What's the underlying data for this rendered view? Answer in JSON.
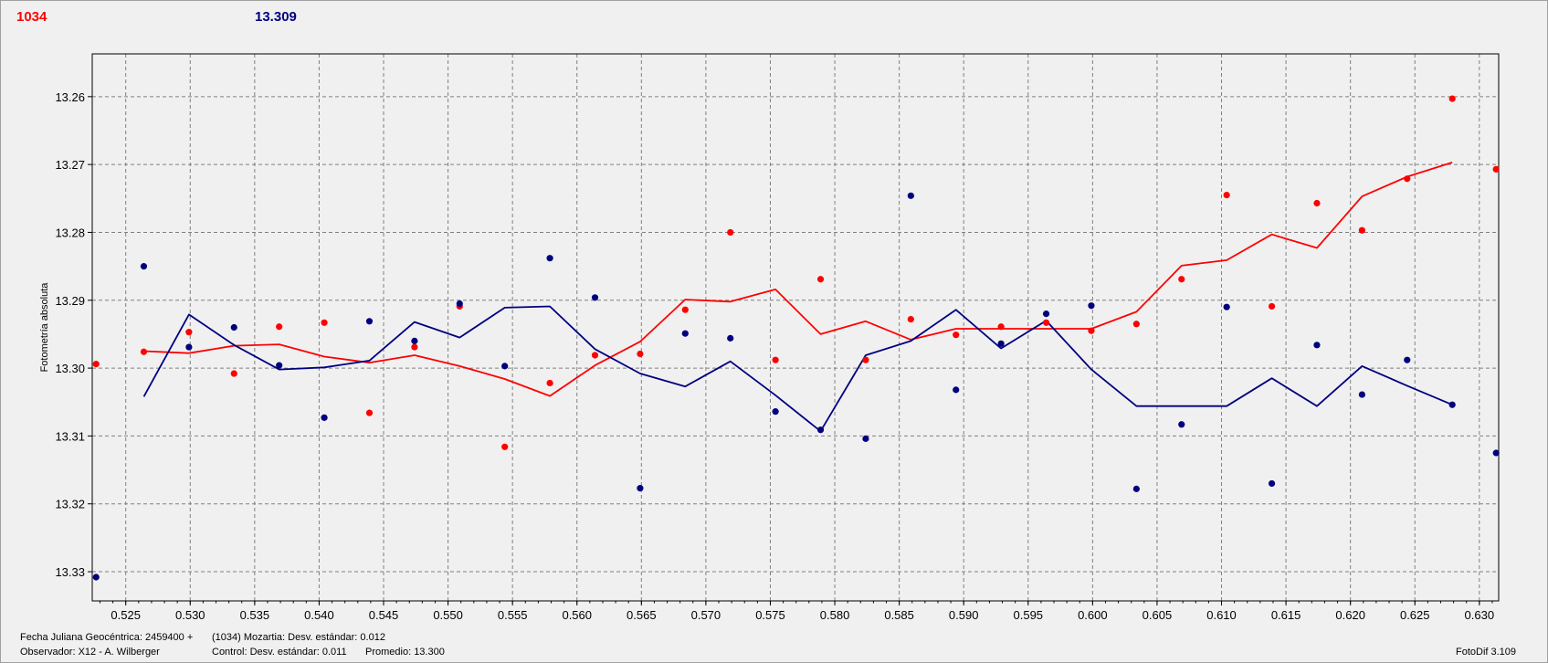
{
  "header": {
    "variable_name": "1034",
    "comparison_value": "13.309"
  },
  "colors": {
    "variable": "#ff0000",
    "comparison": "#00007f",
    "grid": "#808080",
    "plot_bg": "#f0f0f0"
  },
  "footer": {
    "jd_label": "Fecha Juliana Geocéntrica: 2459400 +",
    "observer": "Observador: X12 - A. Wilberger",
    "variable_stats": "(1034) Mozartia: Desv. estándar: 0.012",
    "control_stats": "Control: Desv. estándar: 0.011",
    "average": "Promedio: 13.300",
    "software": "FotoDif 3.109"
  },
  "chart_data": {
    "type": "scatter",
    "ylabel": "Fotometría absoluta",
    "xlabel": "",
    "xlim": [
      0.5224,
      0.6315
    ],
    "ylim": [
      13.2537,
      13.3343
    ],
    "y_inverted": true,
    "grid": true,
    "x_ticks": [
      "0.525",
      "0.530",
      "0.535",
      "0.540",
      "0.545",
      "0.550",
      "0.555",
      "0.560",
      "0.565",
      "0.570",
      "0.575",
      "0.580",
      "0.585",
      "0.590",
      "0.595",
      "0.600",
      "0.605",
      "0.610",
      "0.615",
      "0.620",
      "0.625",
      "0.630"
    ],
    "y_ticks": [
      "13.26",
      "13.27",
      "13.28",
      "13.29",
      "13.30",
      "13.31",
      "13.32",
      "13.33"
    ],
    "series": [
      {
        "name": "1034",
        "color": "#ff0000",
        "points": [
          [
            0.5227,
            13.2994
          ],
          [
            0.5264,
            13.2976
          ],
          [
            0.5299,
            13.2947
          ],
          [
            0.5334,
            13.3008
          ],
          [
            0.5369,
            13.2939
          ],
          [
            0.5404,
            13.2933
          ],
          [
            0.5439,
            13.3066
          ],
          [
            0.5474,
            13.2969
          ],
          [
            0.5509,
            13.2909
          ],
          [
            0.5544,
            13.3116
          ],
          [
            0.5579,
            13.3022
          ],
          [
            0.5614,
            13.2981
          ],
          [
            0.5649,
            13.2979
          ],
          [
            0.5684,
            13.2914
          ],
          [
            0.5719,
            13.28
          ],
          [
            0.5754,
            13.2988
          ],
          [
            0.5789,
            13.2869
          ],
          [
            0.5824,
            13.2988
          ],
          [
            0.5859,
            13.2928
          ],
          [
            0.5894,
            13.2951
          ],
          [
            0.5929,
            13.2939
          ],
          [
            0.5964,
            13.2933
          ],
          [
            0.5999,
            13.2945
          ],
          [
            0.6034,
            13.2935
          ],
          [
            0.6069,
            13.2869
          ],
          [
            0.6104,
            13.2745
          ],
          [
            0.6139,
            13.2909
          ],
          [
            0.6174,
            13.2757
          ],
          [
            0.6209,
            13.2797
          ],
          [
            0.6244,
            13.2721
          ],
          [
            0.6279,
            13.2603
          ],
          [
            0.6313,
            13.2707
          ]
        ],
        "line": [
          [
            0.5264,
            13.2975
          ],
          [
            0.5299,
            13.2978
          ],
          [
            0.5334,
            13.2967
          ],
          [
            0.5369,
            13.2965
          ],
          [
            0.5404,
            13.2983
          ],
          [
            0.5439,
            13.2992
          ],
          [
            0.5474,
            13.2981
          ],
          [
            0.5509,
            13.2997
          ],
          [
            0.5544,
            13.3016
          ],
          [
            0.5579,
            13.3041
          ],
          [
            0.5614,
            13.2996
          ],
          [
            0.5649,
            13.2961
          ],
          [
            0.5684,
            13.2899
          ],
          [
            0.5719,
            13.2902
          ],
          [
            0.5754,
            13.2884
          ],
          [
            0.5789,
            13.295
          ],
          [
            0.5824,
            13.2931
          ],
          [
            0.5859,
            13.2958
          ],
          [
            0.5894,
            13.2942
          ],
          [
            0.5929,
            13.2942
          ],
          [
            0.5964,
            13.2942
          ],
          [
            0.5999,
            13.2942
          ],
          [
            0.6034,
            13.2917
          ],
          [
            0.6069,
            13.2849
          ],
          [
            0.6104,
            13.2841
          ],
          [
            0.6139,
            13.2803
          ],
          [
            0.6174,
            13.2823
          ],
          [
            0.6209,
            13.2747
          ],
          [
            0.6244,
            13.2718
          ],
          [
            0.6279,
            13.2697
          ]
        ]
      },
      {
        "name": "13.309",
        "color": "#00007f",
        "points": [
          [
            0.5227,
            13.3308
          ],
          [
            0.5264,
            13.285
          ],
          [
            0.5299,
            13.2969
          ],
          [
            0.5334,
            13.294
          ],
          [
            0.5369,
            13.2996
          ],
          [
            0.5404,
            13.3073
          ],
          [
            0.5439,
            13.2931
          ],
          [
            0.5474,
            13.296
          ],
          [
            0.5509,
            13.2905
          ],
          [
            0.5544,
            13.2997
          ],
          [
            0.5579,
            13.2838
          ],
          [
            0.5614,
            13.2896
          ],
          [
            0.5649,
            13.3177
          ],
          [
            0.5684,
            13.2949
          ],
          [
            0.5719,
            13.2956
          ],
          [
            0.5754,
            13.3064
          ],
          [
            0.5789,
            13.3091
          ],
          [
            0.5824,
            13.3104
          ],
          [
            0.5859,
            13.2746
          ],
          [
            0.5894,
            13.3032
          ],
          [
            0.5929,
            13.2964
          ],
          [
            0.5964,
            13.292
          ],
          [
            0.5999,
            13.2908
          ],
          [
            0.6034,
            13.3178
          ],
          [
            0.6069,
            13.3083
          ],
          [
            0.6104,
            13.291
          ],
          [
            0.6139,
            13.317
          ],
          [
            0.6174,
            13.2966
          ],
          [
            0.6209,
            13.3039
          ],
          [
            0.6244,
            13.2988
          ],
          [
            0.6279,
            13.3054
          ],
          [
            0.6313,
            13.3125
          ]
        ],
        "line": [
          [
            0.5264,
            13.3042
          ],
          [
            0.5299,
            13.2921
          ],
          [
            0.5334,
            13.2966
          ],
          [
            0.5369,
            13.3002
          ],
          [
            0.5404,
            13.2999
          ],
          [
            0.5439,
            13.2989
          ],
          [
            0.5474,
            13.2932
          ],
          [
            0.5509,
            13.2955
          ],
          [
            0.5544,
            13.2911
          ],
          [
            0.5579,
            13.2909
          ],
          [
            0.5614,
            13.2972
          ],
          [
            0.5649,
            13.3008
          ],
          [
            0.5684,
            13.3027
          ],
          [
            0.5719,
            13.299
          ],
          [
            0.5754,
            13.304
          ],
          [
            0.5789,
            13.3093
          ],
          [
            0.5824,
            13.2981
          ],
          [
            0.5859,
            13.296
          ],
          [
            0.5894,
            13.2914
          ],
          [
            0.5929,
            13.2971
          ],
          [
            0.5964,
            13.293
          ],
          [
            0.5999,
            13.3002
          ],
          [
            0.6034,
            13.3056
          ],
          [
            0.6069,
            13.3056
          ],
          [
            0.6104,
            13.3056
          ],
          [
            0.6139,
            13.3015
          ],
          [
            0.6174,
            13.3056
          ],
          [
            0.6209,
            13.2997
          ],
          [
            0.6244,
            13.3026
          ],
          [
            0.6279,
            13.3054
          ]
        ]
      }
    ]
  }
}
